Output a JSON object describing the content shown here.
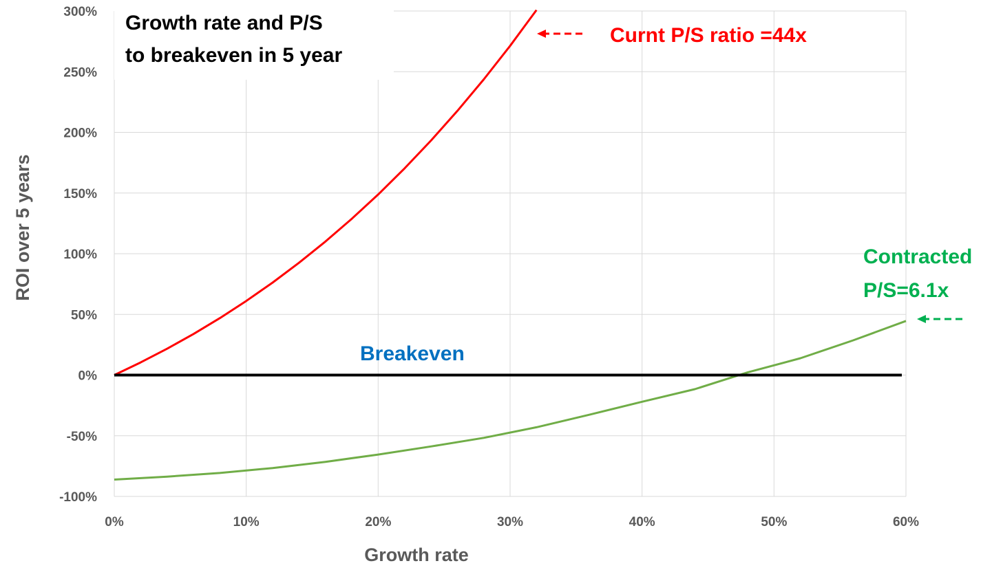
{
  "chart_data": {
    "type": "line",
    "title": [
      "Growth rate and P/S",
      "to breakeven in 5 year"
    ],
    "xlabel": "Growth rate",
    "ylabel": "ROI over 5 years",
    "xlim": [
      0,
      60
    ],
    "ylim": [
      -100,
      300
    ],
    "x_ticks": [
      0,
      10,
      20,
      30,
      40,
      50,
      60
    ],
    "x_tick_labels": [
      "0%",
      "10%",
      "20%",
      "30%",
      "40%",
      "50%",
      "60%"
    ],
    "y_ticks": [
      300,
      250,
      200,
      150,
      100,
      50,
      0,
      -50,
      -100
    ],
    "y_tick_labels": [
      "300%",
      "250%",
      "200%",
      "150%",
      "100%",
      "50%",
      "0%",
      "-50%",
      "-100%"
    ],
    "grid": true,
    "series": [
      {
        "name": "Curnt P/S ratio =44x",
        "color": "#ff0000",
        "x": [
          0,
          2,
          4,
          6,
          8,
          10,
          12,
          14,
          16,
          18,
          20,
          22,
          24,
          26,
          28,
          30,
          32
        ],
        "y": [
          0,
          10.4,
          21.7,
          33.8,
          46.9,
          61.1,
          76.2,
          92.5,
          110,
          128.8,
          148.8,
          170.3,
          193.2,
          217.6,
          243.6,
          271.3,
          300.8
        ]
      },
      {
        "name": "Contracted P/S=6.1x",
        "color": "#70ad47",
        "x": [
          0,
          4,
          8,
          12,
          16,
          20,
          24,
          28,
          32,
          36,
          40,
          44,
          48,
          52,
          56,
          60
        ],
        "y": [
          -86.1,
          -83.7,
          -80.7,
          -76.6,
          -71.5,
          -65.5,
          -58.8,
          -51.7,
          -43,
          -32.7,
          -22,
          -11.6,
          2.2,
          13.9,
          28.6,
          44.6
        ]
      },
      {
        "name": "Breakeven",
        "color": "#000000",
        "x": [
          0,
          60
        ],
        "y": [
          0,
          0
        ]
      }
    ],
    "annotations": [
      {
        "lines": [
          "Curnt P/S ratio =44x"
        ],
        "color": "#ff0000"
      },
      {
        "lines": [
          "Contracted",
          "P/S=6.1x"
        ],
        "color": "#00b050"
      },
      {
        "lines": [
          "Breakeven"
        ],
        "color": "#0070c0"
      }
    ]
  }
}
